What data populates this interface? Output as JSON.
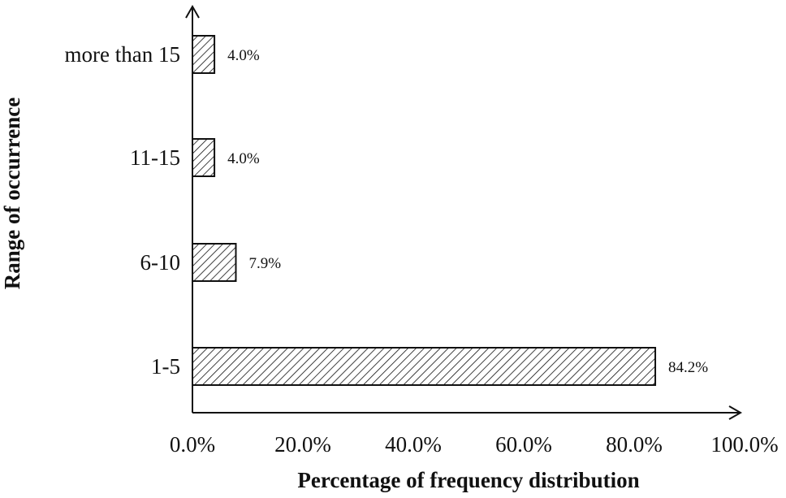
{
  "chart_data": {
    "type": "bar",
    "orientation": "horizontal",
    "categories": [
      "1-5",
      "6-10",
      "11-15",
      "more than 15"
    ],
    "values": [
      84.2,
      7.9,
      4.0,
      4.0
    ],
    "data_labels": [
      "84.2%",
      "7.9%",
      "4.0%",
      "4.0%"
    ],
    "xlabel": "Percentage of frequency distribution",
    "ylabel": "Range of occurrence",
    "xlim": [
      0,
      100
    ],
    "x_ticks": [
      "0.0%",
      "20.0%",
      "40.0%",
      "60.0%",
      "80.0%",
      "100.0%"
    ],
    "grid": false,
    "legend": "none",
    "bar_fill": "diagonal-hatch",
    "colors": {
      "bar_stroke": "#111111",
      "hatch": "#111111",
      "background": "#ffffff"
    }
  }
}
